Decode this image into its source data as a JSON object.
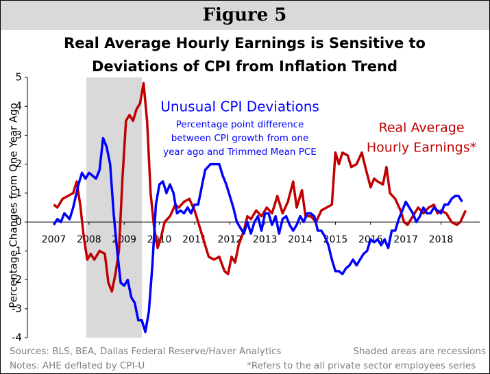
{
  "header": "Figure 5",
  "chart_data": {
    "type": "line",
    "title": [
      "Real Average Hourly Earnings is Sensitive to",
      "Deviations of CPI from Inflation Trend"
    ],
    "ylabel": "Percentage Changes from One Year Ago",
    "xlim": [
      2006.25,
      2019.1
    ],
    "xticks": [
      2007,
      2008,
      2009,
      2010,
      2011,
      2012,
      2013,
      2014,
      2015,
      2016,
      2017,
      2018
    ],
    "ylim": [
      -4,
      5
    ],
    "yticks": [
      -4,
      -3,
      -2,
      -1,
      0,
      1,
      2,
      3,
      4,
      5
    ],
    "recessions": [
      [
        2007.92,
        2009.5
      ]
    ],
    "recession_color": "#d9d9d9",
    "series": [
      {
        "name": "Real Average Hourly Earnings*",
        "color": "#c00000",
        "x": [
          2007.0,
          2007.1,
          2007.25,
          2007.4,
          2007.55,
          2007.65,
          2007.75,
          2007.85,
          2007.95,
          2008.05,
          2008.15,
          2008.3,
          2008.45,
          2008.55,
          2008.65,
          2008.75,
          2008.85,
          2008.95,
          2009.05,
          2009.15,
          2009.25,
          2009.35,
          2009.45,
          2009.55,
          2009.65,
          2009.75,
          2009.85,
          2009.95,
          2010.05,
          2010.15,
          2010.3,
          2010.45,
          2010.55,
          2010.7,
          2010.85,
          2011.0,
          2011.1,
          2011.25,
          2011.4,
          2011.55,
          2011.7,
          2011.85,
          2011.95,
          2012.05,
          2012.15,
          2012.25,
          2012.4,
          2012.5,
          2012.6,
          2012.75,
          2012.9,
          2013.05,
          2013.2,
          2013.35,
          2013.5,
          2013.65,
          2013.8,
          2013.9,
          2014.05,
          2014.15,
          2014.3,
          2014.45,
          2014.6,
          2014.75,
          2014.9,
          2015.0,
          2015.1,
          2015.2,
          2015.35,
          2015.45,
          2015.6,
          2015.75,
          2015.85,
          2016.0,
          2016.1,
          2016.2,
          2016.35,
          2016.45,
          2016.55,
          2016.7,
          2016.85,
          2016.95,
          2017.05,
          2017.2,
          2017.35,
          2017.5,
          2017.65,
          2017.8,
          2017.9,
          2018.0,
          2018.15,
          2018.3,
          2018.45,
          2018.55,
          2018.7
        ],
        "values": [
          0.6,
          0.5,
          0.8,
          0.9,
          1.0,
          1.4,
          0.6,
          -0.5,
          -1.3,
          -1.1,
          -1.3,
          -1.0,
          -1.1,
          -2.1,
          -2.4,
          -1.8,
          -1.0,
          1.5,
          3.5,
          3.7,
          3.5,
          3.9,
          4.1,
          4.8,
          3.5,
          1.0,
          -0.2,
          -0.9,
          -0.5,
          0.0,
          0.2,
          0.6,
          0.5,
          0.7,
          0.8,
          0.4,
          0.0,
          -0.6,
          -1.2,
          -1.3,
          -1.2,
          -1.7,
          -1.8,
          -1.2,
          -1.4,
          -0.8,
          -0.3,
          0.2,
          0.1,
          0.4,
          0.2,
          0.5,
          0.3,
          0.9,
          0.3,
          0.7,
          1.4,
          0.5,
          1.1,
          0.2,
          0.2,
          0.0,
          0.4,
          0.5,
          0.6,
          2.4,
          2.0,
          2.4,
          2.3,
          1.9,
          2.0,
          2.4,
          1.9,
          1.2,
          1.5,
          1.4,
          1.3,
          1.9,
          1.0,
          0.8,
          0.4,
          0.0,
          -0.1,
          0.2,
          0.5,
          0.3,
          0.5,
          0.6,
          0.3,
          0.4,
          0.3,
          0.0,
          -0.1,
          0.0,
          0.4
        ]
      },
      {
        "name": "Unusual CPI Deviations",
        "color": "#0000ff",
        "x": [
          2007.0,
          2007.1,
          2007.2,
          2007.3,
          2007.45,
          2007.55,
          2007.7,
          2007.8,
          2007.9,
          2008.0,
          2008.1,
          2008.2,
          2008.3,
          2008.4,
          2008.5,
          2008.6,
          2008.7,
          2008.8,
          2008.9,
          2009.0,
          2009.1,
          2009.2,
          2009.3,
          2009.4,
          2009.5,
          2009.6,
          2009.7,
          2009.8,
          2009.9,
          2010.0,
          2010.1,
          2010.2,
          2010.3,
          2010.4,
          2010.5,
          2010.6,
          2010.7,
          2010.8,
          2010.9,
          2011.0,
          2011.1,
          2011.2,
          2011.3,
          2011.45,
          2011.6,
          2011.7,
          2011.8,
          2011.9,
          2012.0,
          2012.1,
          2012.2,
          2012.3,
          2012.4,
          2012.5,
          2012.6,
          2012.7,
          2012.8,
          2012.9,
          2013.0,
          2013.1,
          2013.2,
          2013.3,
          2013.4,
          2013.5,
          2013.6,
          2013.7,
          2013.8,
          2013.9,
          2014.0,
          2014.1,
          2014.2,
          2014.3,
          2014.4,
          2014.5,
          2014.6,
          2014.7,
          2014.8,
          2014.9,
          2015.0,
          2015.1,
          2015.2,
          2015.3,
          2015.4,
          2015.5,
          2015.6,
          2015.7,
          2015.8,
          2015.9,
          2016.0,
          2016.1,
          2016.2,
          2016.3,
          2016.4,
          2016.5,
          2016.6,
          2016.7,
          2016.8,
          2016.9,
          2017.0,
          2017.1,
          2017.2,
          2017.3,
          2017.4,
          2017.5,
          2017.6,
          2017.7,
          2017.8,
          2017.9,
          2018.0,
          2018.1,
          2018.2,
          2018.3,
          2018.4,
          2018.5,
          2018.6
        ],
        "values": [
          -0.1,
          0.1,
          0.0,
          0.3,
          0.1,
          0.5,
          1.3,
          1.7,
          1.5,
          1.7,
          1.6,
          1.5,
          1.8,
          2.9,
          2.6,
          2.0,
          0.3,
          -1.0,
          -2.1,
          -2.2,
          -2.0,
          -2.6,
          -2.8,
          -3.4,
          -3.4,
          -3.8,
          -3.1,
          -1.5,
          0.6,
          1.3,
          1.4,
          1.0,
          1.3,
          1.0,
          0.3,
          0.4,
          0.3,
          0.5,
          0.3,
          0.6,
          0.6,
          1.2,
          1.8,
          2.0,
          2.0,
          2.0,
          1.6,
          1.3,
          0.9,
          0.5,
          0.0,
          -0.2,
          -0.4,
          0.0,
          -0.4,
          0.0,
          0.2,
          -0.3,
          0.3,
          0.3,
          -0.1,
          0.2,
          -0.4,
          0.1,
          0.2,
          -0.1,
          -0.3,
          -0.1,
          0.2,
          0.0,
          0.3,
          0.3,
          0.2,
          -0.3,
          -0.3,
          -0.5,
          -0.8,
          -1.3,
          -1.7,
          -1.7,
          -1.8,
          -1.6,
          -1.5,
          -1.3,
          -1.5,
          -1.3,
          -1.1,
          -1.0,
          -0.6,
          -0.7,
          -0.6,
          -0.8,
          -0.6,
          -0.9,
          -0.3,
          -0.3,
          0.1,
          0.4,
          0.7,
          0.5,
          0.3,
          0.0,
          0.2,
          0.5,
          0.3,
          0.3,
          0.5,
          0.4,
          0.3,
          0.6,
          0.6,
          0.8,
          0.9,
          0.9,
          0.7
        ]
      }
    ],
    "annotations": {
      "blue_title": "Unusual CPI Deviations",
      "blue_note": [
        "Percentage point difference",
        "between CPI growth from one",
        "year ago and Trimmed Mean PCE"
      ],
      "red_label": [
        "Real Average",
        "Hourly Earnings*"
      ]
    }
  },
  "footer": {
    "sources": "Sources: BLS, BEA, Dallas Federal Reserve/Haver Analytics",
    "shaded": "Shaded areas are recessions",
    "notes": "Notes: AHE deflated by CPI-U",
    "refers": "*Refers to the all private sector employees series"
  }
}
